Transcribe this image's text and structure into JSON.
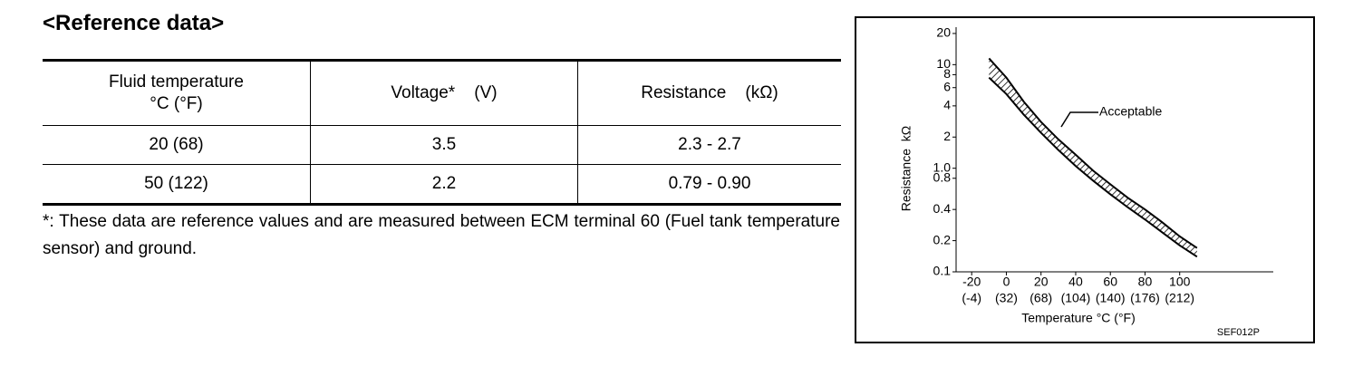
{
  "header": {
    "title": "<Reference data>"
  },
  "table": {
    "columns": [
      [
        "Fluid temperature",
        "°C (°F)"
      ],
      [
        "Voltage*    (V)"
      ],
      [
        "Resistance    (kΩ)"
      ]
    ],
    "rows": [
      [
        "20 (68)",
        "3.5",
        "2.3 - 2.7"
      ],
      [
        "50 (122)",
        "2.2",
        "0.79 - 0.90"
      ]
    ]
  },
  "note": "*: These data are reference values and are measured between ECM terminal 60 (Fuel tank temperature sensor) and ground.",
  "chart_data": {
    "type": "band",
    "x_label": "Temperature °C (°F)",
    "y_label": "Resistance  kΩ",
    "annotation": "Acceptable",
    "code": "SEF012P",
    "log_y": true,
    "color": "#000000",
    "x": [
      -10,
      0,
      10,
      20,
      30,
      40,
      50,
      60,
      70,
      80,
      90,
      100,
      110
    ],
    "series": [
      {
        "values": [
          11.5,
          7.5,
          4.4,
          2.8,
          1.9,
          1.35,
          0.95,
          0.7,
          0.52,
          0.4,
          0.3,
          0.22,
          0.17
        ]
      },
      {
        "values": [
          7.5,
          5.2,
          3.3,
          2.2,
          1.5,
          1.05,
          0.76,
          0.56,
          0.42,
          0.32,
          0.24,
          0.18,
          0.14
        ]
      }
    ],
    "xlim": [
      -29,
      154
    ],
    "ylim": [
      0.1,
      23
    ],
    "xticks": [
      -20,
      0,
      20,
      40,
      60,
      80,
      100
    ],
    "xticks_fahrenheit": [
      "(-4)",
      "(32)",
      "(68)",
      "(104)",
      "(140)",
      "(176)",
      "(212)"
    ],
    "yticks": [
      0.1,
      0.2,
      0.4,
      0.8,
      {
        "value": 1,
        "label": "1.0"
      },
      2,
      4,
      6,
      8,
      10,
      20
    ]
  }
}
